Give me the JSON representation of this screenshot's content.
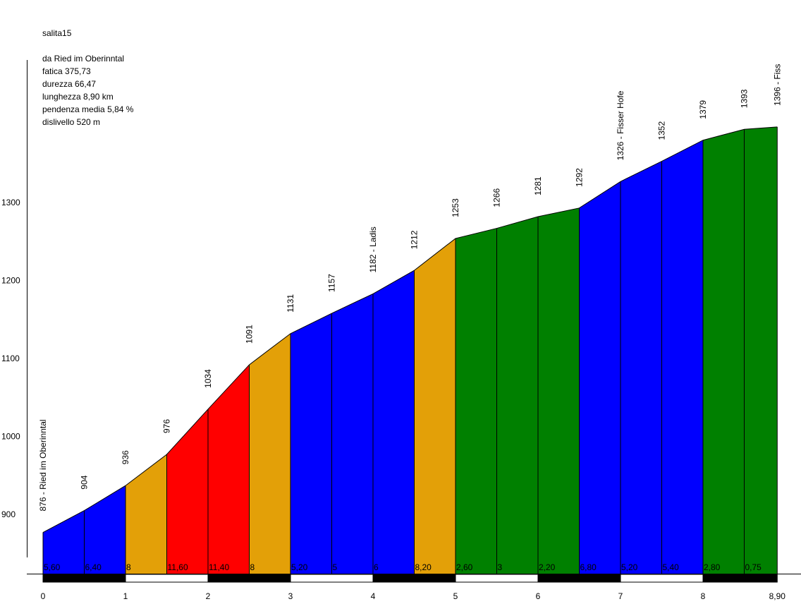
{
  "title": "salita15",
  "info": {
    "start": "da Ried im Oberinntal",
    "fatica": "fatica 375,73",
    "durezza": "durezza 66,47",
    "lunghezza": "lunghezza 8,90 km",
    "pendenza": "pendenza media 5,84 %",
    "dislivello": "dislivello 520 m"
  },
  "chart_data": {
    "type": "area",
    "x": [
      0,
      0.5,
      1,
      1.5,
      2,
      2.5,
      3,
      3.5,
      4,
      4.5,
      5,
      5.5,
      6,
      6.5,
      7,
      7.5,
      8,
      8.5,
      8.9
    ],
    "elevation": [
      876,
      904,
      936,
      976,
      1034,
      1091,
      1131,
      1157,
      1182,
      1212,
      1253,
      1266,
      1281,
      1292,
      1326,
      1352,
      1379,
      1393,
      1396
    ],
    "point_labels": [
      "876 - Ried im Oberinntal",
      "904",
      "936",
      "976",
      "1034",
      "1091",
      "1131",
      "1157",
      "1182 - Ladis",
      "1212",
      "1253",
      "1266",
      "1281",
      "1292",
      "1326 - Fisser Hofe",
      "1352",
      "1379",
      "1393",
      "1396 - Fiss"
    ],
    "gradients": [
      "5,60",
      "6,40",
      "8",
      "11,60",
      "11,40",
      "8",
      "5,20",
      "5",
      "6",
      "8,20",
      "2,60",
      "3",
      "2,20",
      "6,80",
      "5,20",
      "5,40",
      "2,80",
      "0,75"
    ],
    "segment_colors": [
      "#0000ff",
      "#0000ff",
      "#e3a008",
      "#ff0000",
      "#ff0000",
      "#e3a008",
      "#0000ff",
      "#0000ff",
      "#0000ff",
      "#e3a008",
      "#008000",
      "#008000",
      "#008000",
      "#0000ff",
      "#0000ff",
      "#0000ff",
      "#008000",
      "#008000"
    ],
    "x_ticks": [
      0,
      1,
      2,
      3,
      4,
      5,
      6,
      7,
      8,
      8.9
    ],
    "x_tick_labels": [
      "0",
      "1",
      "2",
      "3",
      "4",
      "5",
      "6",
      "7",
      "8",
      "8,90"
    ],
    "y_ticks": [
      900,
      1000,
      1100,
      1200,
      1300
    ],
    "y_tick_labels": [
      "900",
      "1000",
      "1100",
      "1200",
      "1300"
    ],
    "xlim": [
      0,
      8.9
    ],
    "ylim": [
      800,
      1400
    ]
  }
}
